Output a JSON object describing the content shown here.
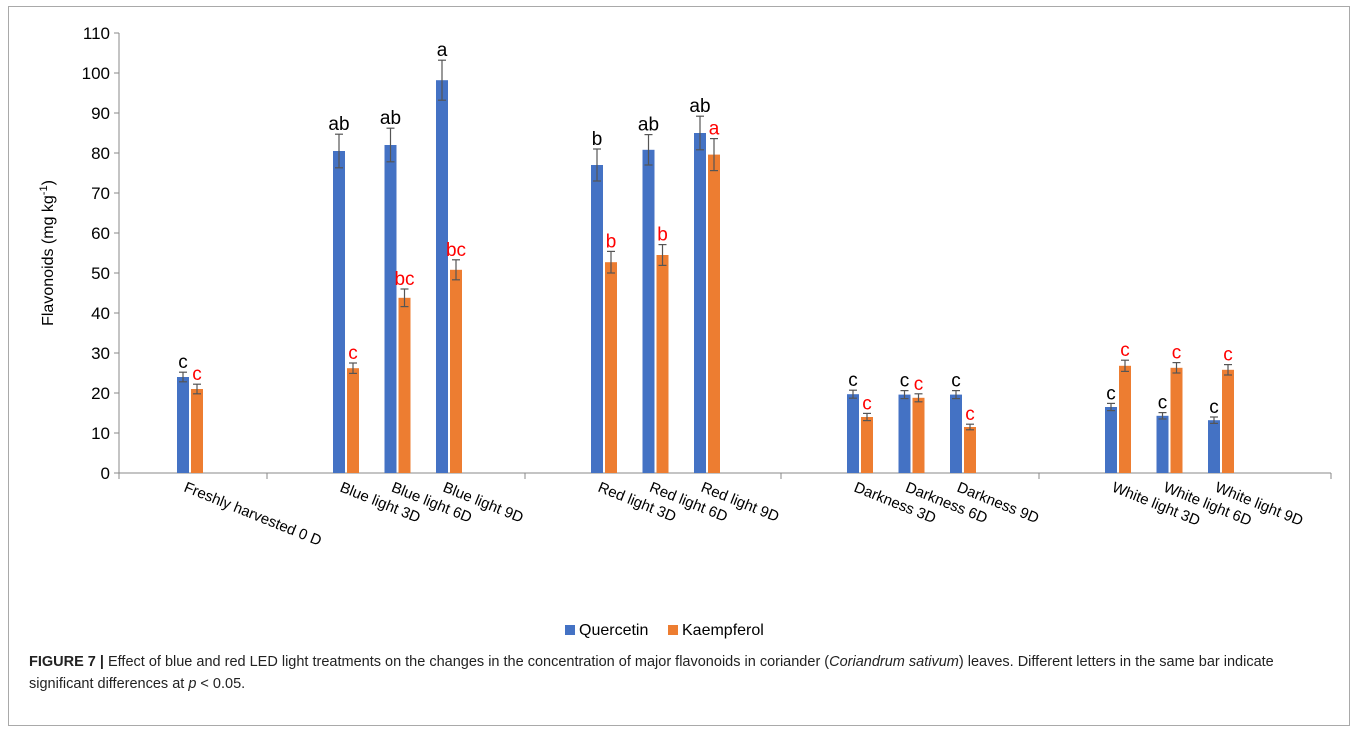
{
  "chart_data": {
    "type": "bar",
    "ylabel": "Flavonoids (mg kg",
    "ylabel_sup": "-1",
    "ylabel_close": ")",
    "ylim": [
      0,
      110
    ],
    "yticks": [
      0,
      10,
      20,
      30,
      40,
      50,
      60,
      70,
      80,
      90,
      100,
      110
    ],
    "grid": false,
    "legend_position": "bottom-center",
    "categories": [
      "Freshly harvested  0 D",
      "Blue light 3D",
      "Blue light 6D",
      "Blue light 9D",
      "Red light 3D",
      "Red light 6D",
      "Red light 9D",
      "Darkness 3D",
      "Darkness 6D",
      "Darkness 9D",
      "White light 3D",
      "White light 6D",
      "White light 9D"
    ],
    "series": [
      {
        "name": "Quercetin",
        "color": "#4472c4",
        "values": [
          24,
          80.5,
          82,
          98.2,
          77,
          80.8,
          85,
          19.7,
          19.6,
          19.6,
          16.5,
          14.3,
          13.2
        ],
        "errors": [
          1.2,
          4.2,
          4.2,
          5.0,
          4.0,
          3.8,
          4.2,
          1.0,
          1.0,
          1.0,
          0.9,
          0.8,
          0.8
        ],
        "letters": [
          "c",
          "ab",
          "ab",
          "a",
          "b",
          "ab",
          "ab",
          "c",
          "c",
          "c",
          "c",
          "c",
          "c"
        ],
        "letter_color": "#000000"
      },
      {
        "name": "Kaempferol",
        "color": "#ed7d31",
        "values": [
          21,
          26.2,
          43.8,
          50.8,
          52.7,
          54.5,
          79.6,
          14,
          18.8,
          11.5,
          26.8,
          26.3,
          25.8
        ],
        "errors": [
          1.2,
          1.3,
          2.2,
          2.5,
          2.7,
          2.6,
          4.0,
          0.9,
          1.0,
          0.7,
          1.4,
          1.3,
          1.3
        ],
        "letters": [
          "c",
          "c",
          "bc",
          "bc",
          "b",
          "b",
          "a",
          "c",
          "c",
          "c",
          "c",
          "c",
          "c"
        ],
        "letter_color": "#ff0000"
      }
    ]
  },
  "caption": {
    "label": "FIGURE 7 |",
    "text_1": " Effect of blue and red LED light treatments on the changes in the concentration of major flavonoids in coriander (",
    "species": "Coriandrum sativum",
    "text_2": ") leaves. Different letters in the same bar indicate significant differences at ",
    "pvar": "p",
    "text_3": " < 0.05."
  }
}
